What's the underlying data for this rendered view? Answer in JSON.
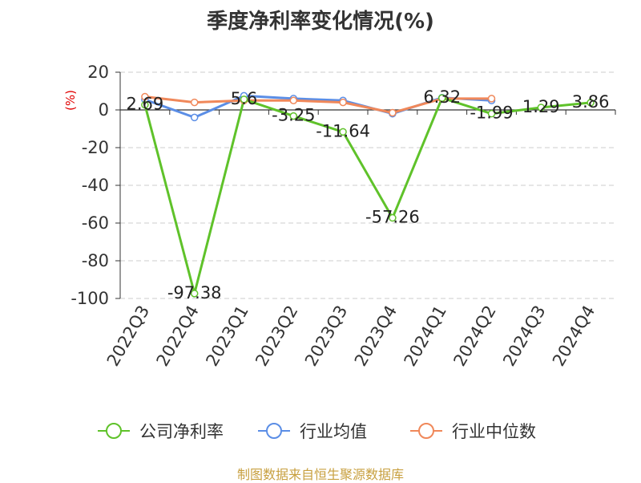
{
  "title": "季度净利率变化情况(%)",
  "source": "制图数据来自恒生聚源数据库",
  "chart_data": {
    "type": "line",
    "unit_label": "(%)",
    "categories": [
      "2022Q3",
      "2022Q4",
      "2023Q1",
      "2023Q2",
      "2023Q3",
      "2023Q4",
      "2024Q1",
      "2024Q2",
      "2024Q3",
      "2024Q4"
    ],
    "ylim": [
      -100,
      20
    ],
    "yticks": [
      20,
      0,
      -20,
      -40,
      -60,
      -80,
      -100
    ],
    "grid": true,
    "legend": "bottom",
    "series": [
      {
        "name": "公司净利率",
        "color": "#5fc22a",
        "values": [
          2.69,
          -97.38,
          5.6,
          -3.25,
          -11.64,
          -57.26,
          6.32,
          -1.99,
          1.29,
          3.86
        ],
        "labels": [
          "2.69",
          "-97.38",
          "5.6",
          "-3.25",
          "-11.64",
          "-57.26",
          "6.32",
          "-1.99",
          "1.29",
          "3.86"
        ]
      },
      {
        "name": "行业均值",
        "color": "#5b8ee6",
        "values": [
          5.5,
          -4.0,
          7.5,
          6.0,
          5.0,
          -2.0,
          6.5,
          5.0,
          null,
          null
        ]
      },
      {
        "name": "行业中位数",
        "color": "#f0885a",
        "values": [
          7.0,
          4.0,
          5.0,
          5.0,
          4.0,
          -1.5,
          6.0,
          6.0,
          null,
          null
        ]
      }
    ]
  }
}
